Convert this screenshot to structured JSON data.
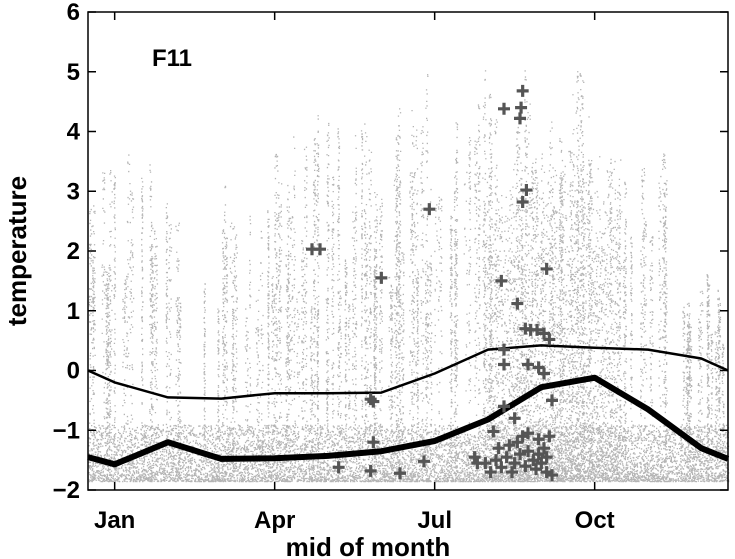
{
  "chart_data": {
    "type": "scatter",
    "panel_label": "F11",
    "xlabel": "mid of month",
    "ylabel": "temperature",
    "xlim": [
      0.5,
      12.5
    ],
    "ylim": [
      -2,
      6
    ],
    "x_ticks": [
      {
        "value": 1,
        "label": "Jan"
      },
      {
        "value": 4,
        "label": "Apr"
      },
      {
        "value": 7,
        "label": "Jul"
      },
      {
        "value": 10,
        "label": "Oct"
      }
    ],
    "y_ticks": [
      {
        "value": -2,
        "label": "−2"
      },
      {
        "value": -1,
        "label": "−1"
      },
      {
        "value": 0,
        "label": "0"
      },
      {
        "value": 1,
        "label": "1"
      },
      {
        "value": 2,
        "label": "2"
      },
      {
        "value": 3,
        "label": "3"
      },
      {
        "value": 4,
        "label": "4"
      },
      {
        "value": 5,
        "label": "5"
      },
      {
        "value": 6,
        "label": "6"
      }
    ],
    "grid": false,
    "colors": {
      "background_points": "#b4b4b4",
      "crosses": "#555555",
      "lines": "#000000"
    },
    "line_thin": {
      "x": [
        0.5,
        1.0,
        2.0,
        3.0,
        4.0,
        5.0,
        6.0,
        7.0,
        8.0,
        9.0,
        10.0,
        11.0,
        12.0,
        12.5
      ],
      "y": [
        0.0,
        -0.2,
        -0.45,
        -0.47,
        -0.38,
        -0.38,
        -0.37,
        -0.05,
        0.35,
        0.42,
        0.38,
        0.35,
        0.2,
        0.0
      ]
    },
    "line_thick": {
      "x": [
        0.5,
        1.0,
        2.0,
        3.0,
        4.0,
        5.0,
        6.0,
        7.0,
        8.0,
        9.0,
        10.0,
        11.0,
        12.0,
        12.5
      ],
      "y": [
        -1.45,
        -1.57,
        -1.2,
        -1.48,
        -1.47,
        -1.43,
        -1.35,
        -1.18,
        -0.82,
        -0.28,
        -0.12,
        -0.65,
        -1.3,
        -1.48
      ]
    },
    "crosses": [
      {
        "x": 4.7,
        "y": 2.03
      },
      {
        "x": 4.85,
        "y": 2.03
      },
      {
        "x": 5.2,
        "y": -1.62
      },
      {
        "x": 5.8,
        "y": -0.48
      },
      {
        "x": 5.85,
        "y": -0.52
      },
      {
        "x": 5.85,
        "y": -1.2
      },
      {
        "x": 5.8,
        "y": -1.68
      },
      {
        "x": 6.0,
        "y": 1.55
      },
      {
        "x": 6.35,
        "y": -1.72
      },
      {
        "x": 6.8,
        "y": -1.52
      },
      {
        "x": 6.9,
        "y": 2.7
      },
      {
        "x": 7.75,
        "y": -1.45
      },
      {
        "x": 7.8,
        "y": -1.55
      },
      {
        "x": 8.1,
        "y": -1.02
      },
      {
        "x": 8.25,
        "y": 1.5
      },
      {
        "x": 8.3,
        "y": 4.38
      },
      {
        "x": 8.55,
        "y": 1.12
      },
      {
        "x": 8.6,
        "y": 4.22
      },
      {
        "x": 8.62,
        "y": 4.4
      },
      {
        "x": 8.65,
        "y": 4.68
      },
      {
        "x": 8.65,
        "y": 2.82
      },
      {
        "x": 8.72,
        "y": 3.02
      },
      {
        "x": 8.7,
        "y": 0.7
      },
      {
        "x": 8.8,
        "y": 0.68
      },
      {
        "x": 8.92,
        "y": 0.68
      },
      {
        "x": 9.05,
        "y": 0.62
      },
      {
        "x": 9.1,
        "y": 1.7
      },
      {
        "x": 9.15,
        "y": 0.52
      },
      {
        "x": 9.2,
        "y": -0.5
      },
      {
        "x": 8.3,
        "y": 0.35
      },
      {
        "x": 8.3,
        "y": 0.1
      },
      {
        "x": 8.75,
        "y": 0.1
      },
      {
        "x": 8.95,
        "y": 0.05
      },
      {
        "x": 9.05,
        "y": -0.05
      },
      {
        "x": 8.3,
        "y": -0.6
      },
      {
        "x": 8.5,
        "y": -0.8
      },
      {
        "x": 8.65,
        "y": -1.1
      },
      {
        "x": 8.75,
        "y": -1.05
      },
      {
        "x": 8.95,
        "y": -1.15
      },
      {
        "x": 9.05,
        "y": -1.3
      },
      {
        "x": 9.15,
        "y": -1.1
      },
      {
        "x": 7.95,
        "y": -1.55
      },
      {
        "x": 8.05,
        "y": -1.7
      },
      {
        "x": 8.15,
        "y": -1.5
      },
      {
        "x": 8.25,
        "y": -1.62
      },
      {
        "x": 8.35,
        "y": -1.45
      },
      {
        "x": 8.45,
        "y": -1.7
      },
      {
        "x": 8.5,
        "y": -1.55
      },
      {
        "x": 8.6,
        "y": -1.4
      },
      {
        "x": 8.7,
        "y": -1.6
      },
      {
        "x": 8.75,
        "y": -1.35
      },
      {
        "x": 8.85,
        "y": -1.5
      },
      {
        "x": 8.9,
        "y": -1.65
      },
      {
        "x": 8.95,
        "y": -1.4
      },
      {
        "x": 9.0,
        "y": -1.55
      },
      {
        "x": 9.1,
        "y": -1.7
      },
      {
        "x": 9.2,
        "y": -1.75
      },
      {
        "x": 8.2,
        "y": -1.3
      },
      {
        "x": 8.4,
        "y": -1.25
      },
      {
        "x": 8.55,
        "y": -1.2
      },
      {
        "x": 9.1,
        "y": -1.45
      }
    ]
  }
}
